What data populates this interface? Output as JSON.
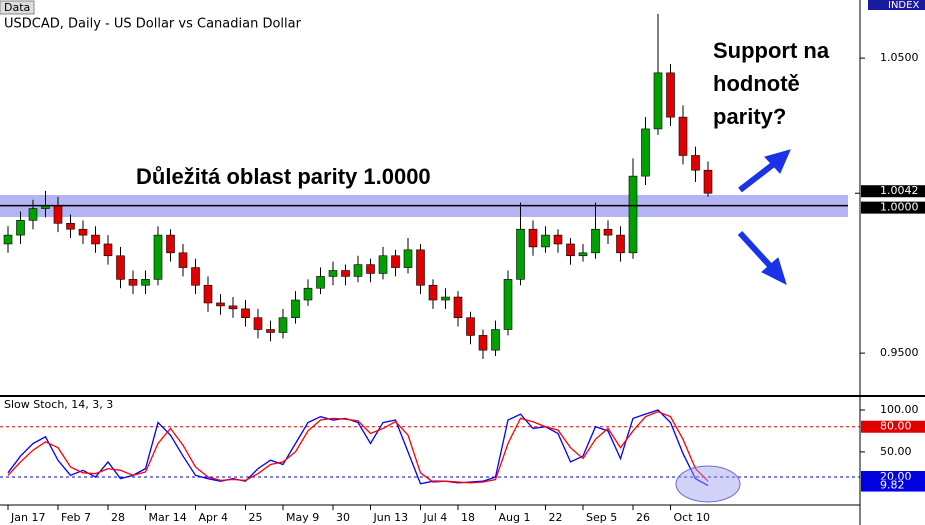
{
  "chart_data": [
    {
      "type": "candlestick",
      "tab_label": "Data",
      "axis_badge": "INDEX",
      "title": "USDCAD, Daily - US Dollar vs Canadian Dollar",
      "annotations": [
        "Důležitá oblast parity 1.0000",
        "Support na",
        "hodnotě",
        "parity?"
      ],
      "up_color": "#00a000",
      "down_color": "#e00000",
      "ylim": [
        0.9358,
        1.0697
      ],
      "yticks": [
        {
          "value": 1.05,
          "label": "1.0500"
        },
        {
          "value": 0.95,
          "label": "0.9500"
        }
      ],
      "hline": {
        "value": 1.0,
        "label": "1.0000"
      },
      "current": {
        "value": 1.0042,
        "label": "1.0042"
      },
      "candles": [
        [
          0.987,
          0.993,
          0.984,
          0.99
        ],
        [
          0.99,
          0.998,
          0.987,
          0.995
        ],
        [
          0.995,
          1.002,
          0.992,
          0.999
        ],
        [
          0.999,
          1.005,
          0.996,
          1.0
        ],
        [
          1.0,
          1.003,
          0.991,
          0.994
        ],
        [
          0.994,
          0.997,
          0.989,
          0.992
        ],
        [
          0.992,
          0.995,
          0.987,
          0.99
        ],
        [
          0.99,
          0.993,
          0.984,
          0.987
        ],
        [
          0.987,
          0.99,
          0.98,
          0.983
        ],
        [
          0.983,
          0.986,
          0.972,
          0.975
        ],
        [
          0.975,
          0.978,
          0.97,
          0.973
        ],
        [
          0.973,
          0.978,
          0.97,
          0.975
        ],
        [
          0.975,
          0.993,
          0.973,
          0.99
        ],
        [
          0.99,
          0.992,
          0.981,
          0.984
        ],
        [
          0.984,
          0.987,
          0.976,
          0.979
        ],
        [
          0.979,
          0.982,
          0.97,
          0.973
        ],
        [
          0.973,
          0.976,
          0.964,
          0.967
        ],
        [
          0.967,
          0.97,
          0.963,
          0.966
        ],
        [
          0.966,
          0.969,
          0.962,
          0.965
        ],
        [
          0.965,
          0.968,
          0.959,
          0.962
        ],
        [
          0.962,
          0.965,
          0.955,
          0.958
        ],
        [
          0.958,
          0.961,
          0.954,
          0.957
        ],
        [
          0.957,
          0.965,
          0.955,
          0.962
        ],
        [
          0.962,
          0.971,
          0.96,
          0.968
        ],
        [
          0.968,
          0.975,
          0.966,
          0.972
        ],
        [
          0.972,
          0.979,
          0.97,
          0.976
        ],
        [
          0.976,
          0.981,
          0.973,
          0.978
        ],
        [
          0.978,
          0.98,
          0.973,
          0.976
        ],
        [
          0.976,
          0.983,
          0.974,
          0.98
        ],
        [
          0.98,
          0.982,
          0.974,
          0.977
        ],
        [
          0.977,
          0.986,
          0.975,
          0.983
        ],
        [
          0.983,
          0.985,
          0.976,
          0.979
        ],
        [
          0.979,
          0.989,
          0.977,
          0.985
        ],
        [
          0.985,
          0.987,
          0.97,
          0.973
        ],
        [
          0.973,
          0.975,
          0.965,
          0.968
        ],
        [
          0.968,
          0.972,
          0.965,
          0.969
        ],
        [
          0.969,
          0.971,
          0.959,
          0.962
        ],
        [
          0.962,
          0.964,
          0.953,
          0.956
        ],
        [
          0.956,
          0.958,
          0.948,
          0.951
        ],
        [
          0.951,
          0.961,
          0.949,
          0.958
        ],
        [
          0.958,
          0.978,
          0.956,
          0.975
        ],
        [
          0.975,
          1.001,
          0.973,
          0.992
        ],
        [
          0.992,
          0.995,
          0.983,
          0.986
        ],
        [
          0.986,
          0.993,
          0.984,
          0.99
        ],
        [
          0.99,
          0.992,
          0.984,
          0.987
        ],
        [
          0.987,
          0.989,
          0.98,
          0.983
        ],
        [
          0.983,
          0.987,
          0.981,
          0.984
        ],
        [
          0.984,
          1.001,
          0.982,
          0.992
        ],
        [
          0.992,
          0.995,
          0.987,
          0.99
        ],
        [
          0.99,
          0.993,
          0.981,
          0.984
        ],
        [
          0.984,
          1.016,
          0.982,
          1.01
        ],
        [
          1.01,
          1.03,
          1.007,
          1.026
        ],
        [
          1.026,
          1.065,
          1.024,
          1.045
        ],
        [
          1.045,
          1.048,
          1.027,
          1.03
        ],
        [
          1.03,
          1.034,
          1.014,
          1.017
        ],
        [
          1.017,
          1.02,
          1.008,
          1.012
        ],
        [
          1.012,
          1.015,
          1.003,
          1.0042
        ]
      ]
    },
    {
      "type": "line",
      "title": "Slow Stoch, 14, 3, 3",
      "ylim": [
        -13.4,
        114.3
      ],
      "yticks": [
        {
          "value": 100,
          "label": "100.00"
        },
        {
          "value": 50,
          "label": "50.00"
        }
      ],
      "levels": [
        {
          "value": 80,
          "label": "80.00",
          "color": "#e00000"
        },
        {
          "value": 20,
          "label": "20.00",
          "color": "#0000e0"
        }
      ],
      "current": {
        "value": 9.82,
        "label": "9.82"
      },
      "categories": [
        "Jan 17",
        null,
        null,
        null,
        "Feb 7",
        null,
        null,
        null,
        "28",
        null,
        null,
        "Mar 14",
        null,
        null,
        null,
        "Apr 4",
        null,
        null,
        null,
        "25",
        null,
        null,
        "May 9",
        null,
        null,
        null,
        "30",
        null,
        null,
        "Jun 13",
        null,
        null,
        null,
        "Jul 4",
        null,
        null,
        "18",
        null,
        null,
        "Aug 1",
        null,
        null,
        null,
        "22",
        null,
        null,
        "Sep 5",
        null,
        null,
        null,
        "26",
        null,
        null,
        "Oct 10",
        null,
        null,
        null
      ],
      "series": [
        {
          "color": "#0000ff",
          "values": [
            25,
            45,
            60,
            68,
            40,
            22,
            28,
            20,
            38,
            18,
            22,
            30,
            85,
            70,
            45,
            22,
            18,
            15,
            18,
            15,
            30,
            40,
            35,
            60,
            85,
            92,
            88,
            90,
            85,
            60,
            85,
            88,
            50,
            12,
            15,
            15,
            13,
            14,
            15,
            20,
            88,
            95,
            78,
            80,
            72,
            38,
            45,
            80,
            75,
            42,
            90,
            95,
            100,
            85,
            48,
            18,
            9.82
          ]
        },
        {
          "color": "#ff0000",
          "values": [
            22,
            38,
            52,
            62,
            55,
            32,
            25,
            24,
            30,
            28,
            22,
            26,
            60,
            78,
            58,
            32,
            20,
            16,
            17,
            16,
            24,
            35,
            38,
            50,
            75,
            88,
            90,
            89,
            87,
            72,
            78,
            86,
            70,
            25,
            14,
            15,
            14,
            13,
            14,
            17,
            60,
            90,
            86,
            80,
            76,
            55,
            42,
            65,
            78,
            55,
            75,
            92,
            98,
            92,
            65,
            30,
            15
          ]
        }
      ]
    }
  ]
}
